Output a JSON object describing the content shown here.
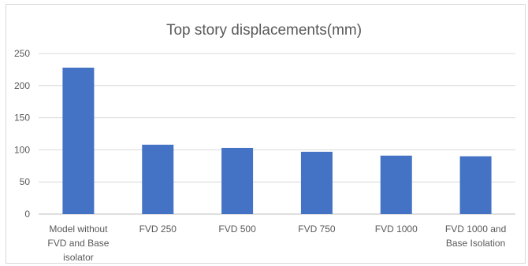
{
  "chart_data": {
    "type": "bar",
    "title": "Top story displacements(mm)",
    "xlabel": "",
    "ylabel": "",
    "ylim": [
      0,
      250
    ],
    "yticks": [
      0,
      50,
      100,
      150,
      200,
      250
    ],
    "grid": true,
    "legend": "none",
    "bar_color": "#4472C4",
    "categories": [
      [
        "Model without",
        "FVD and Base",
        "isolator"
      ],
      [
        "FVD 250"
      ],
      [
        "FVD 500"
      ],
      [
        "FVD 750"
      ],
      [
        "FVD 1000"
      ],
      [
        "FVD 1000 and",
        "Base Isolation"
      ]
    ],
    "values": [
      228,
      108,
      103,
      97,
      91,
      90
    ]
  }
}
